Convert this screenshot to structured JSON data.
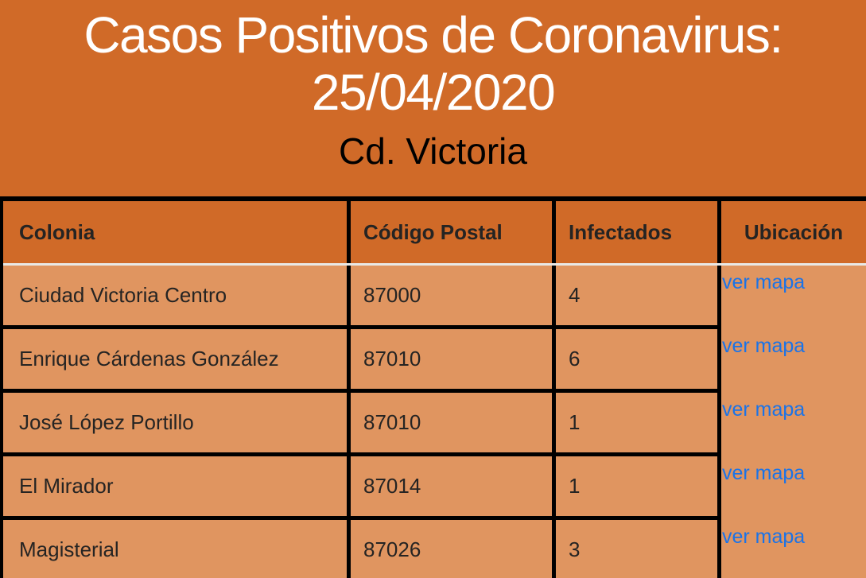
{
  "title": {
    "line1": "Casos Positivos de Coronavirus:",
    "line2": "25/04/2020",
    "subtitle": "Cd. Victoria"
  },
  "table": {
    "headers": [
      "Colonia",
      "Código Postal",
      "Infectados",
      "Ubicación"
    ],
    "rows": [
      {
        "colonia": "Ciudad Victoria Centro",
        "codigo_postal": "87000",
        "infectados": "4",
        "ubicacion": "ver mapa"
      },
      {
        "colonia": "Enrique Cárdenas González",
        "codigo_postal": "87010",
        "infectados": "6",
        "ubicacion": "ver mapa"
      },
      {
        "colonia": "José López Portillo",
        "codigo_postal": "87010",
        "infectados": "1",
        "ubicacion": "ver mapa"
      },
      {
        "colonia": "El Mirador",
        "codigo_postal": "87014",
        "infectados": "1",
        "ubicacion": "ver mapa"
      },
      {
        "colonia": "Magisterial",
        "codigo_postal": "87026",
        "infectados": "3",
        "ubicacion": "ver mapa"
      }
    ]
  },
  "colors": {
    "background": "#d06a28",
    "row_background": "#e09560",
    "border": "#000000",
    "header_underline": "#e9e9e7",
    "title_text": "#ffffff",
    "subtitle_text": "#000000",
    "cell_text": "#252423",
    "link": "#1a73e8"
  },
  "chart_data": {
    "type": "table",
    "title": "Casos Positivos de Coronavirus: 25/04/2020",
    "subtitle": "Cd. Victoria",
    "columns": [
      "Colonia",
      "Código Postal",
      "Infectados",
      "Ubicación"
    ],
    "rows": [
      [
        "Ciudad Victoria Centro",
        "87000",
        4,
        "ver mapa"
      ],
      [
        "Enrique Cárdenas González",
        "87010",
        6,
        "ver mapa"
      ],
      [
        "José López Portillo",
        "87010",
        1,
        "ver mapa"
      ],
      [
        "El Mirador",
        "87014",
        1,
        "ver mapa"
      ],
      [
        "Magisterial",
        "87026",
        3,
        "ver mapa"
      ]
    ]
  }
}
